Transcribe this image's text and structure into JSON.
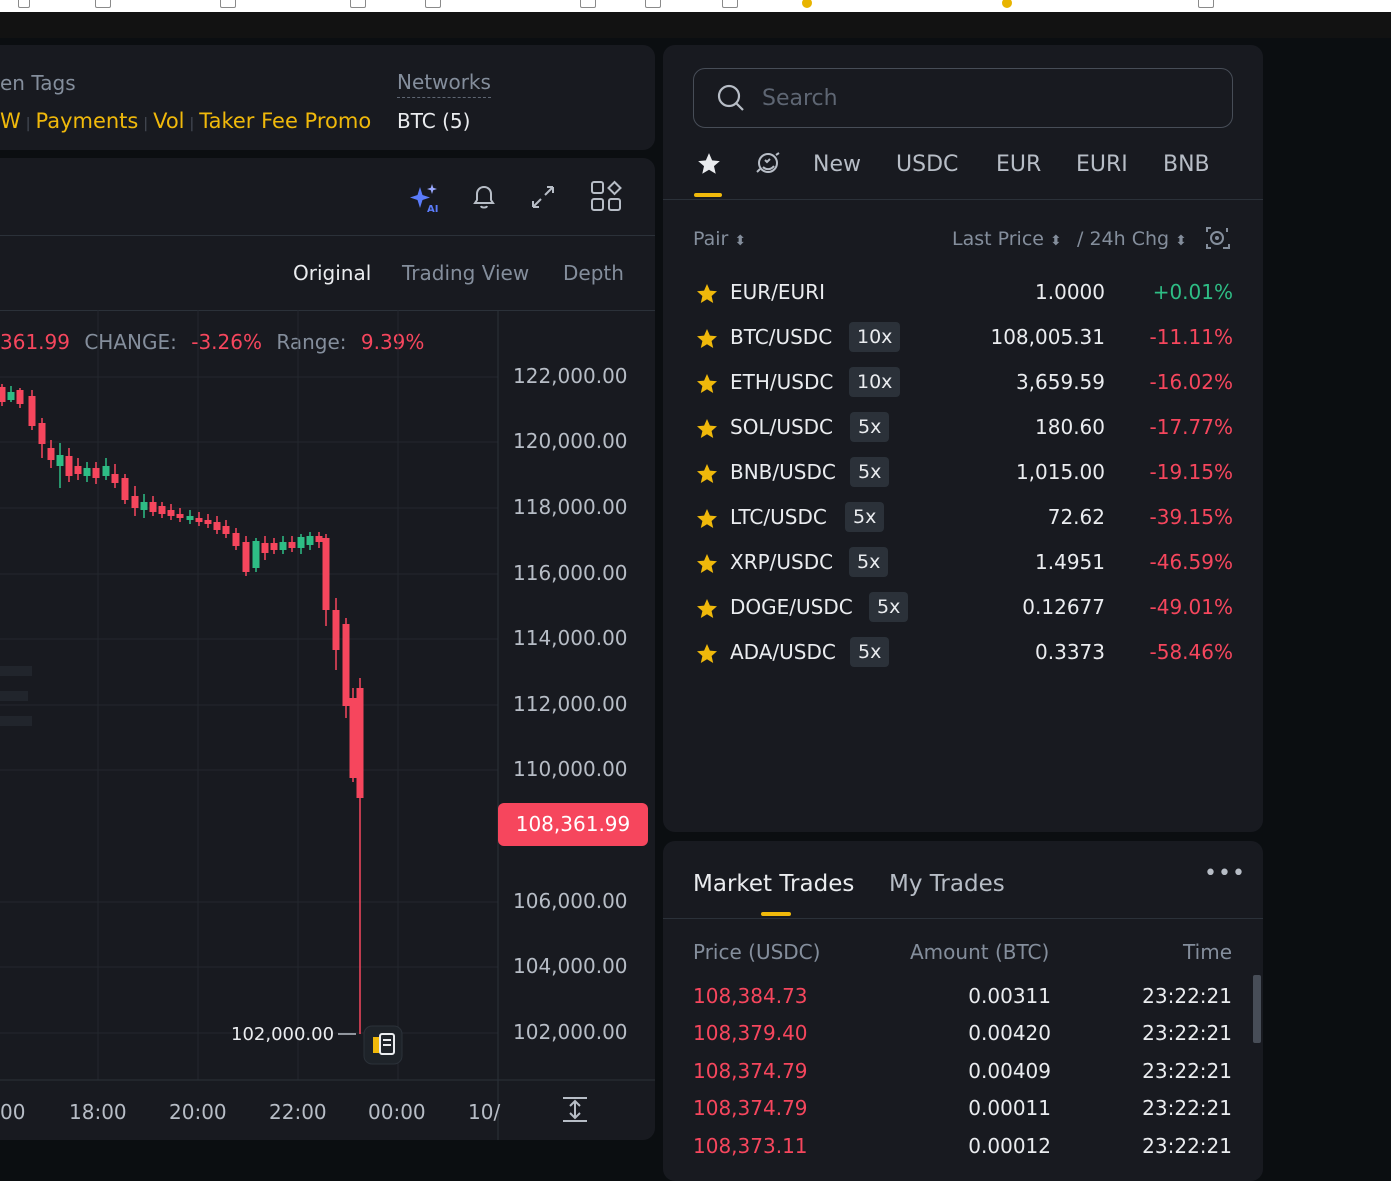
{
  "info": {
    "token_tags_label": "en Tags",
    "tags": [
      "W",
      "Payments",
      "Vol",
      "Taker Fee Promo"
    ],
    "networks_label": "Networks",
    "networks_value": "BTC (5)"
  },
  "chart": {
    "view_tabs": [
      "Original",
      "Trading View",
      "Depth"
    ],
    "active_view": "Original",
    "stats": {
      "close_value": "361.99",
      "change_label": "CHANGE:",
      "change_value": "-3.26%",
      "range_label": "Range:",
      "range_value": "9.39%"
    },
    "price_axis": [
      "122,000.00",
      "120,000.00",
      "118,000.00",
      "116,000.00",
      "114,000.00",
      "112,000.00",
      "110,000.00",
      "106,000.00",
      "104,000.00",
      "102,000.00"
    ],
    "time_axis": [
      "00",
      "18:00",
      "20:00",
      "22:00",
      "00:00",
      "10/"
    ],
    "current_price": "108,361.99",
    "low_marker": "102,000.00",
    "colors": {
      "up": "#2ebd85",
      "down": "#f6465d"
    }
  },
  "markets": {
    "search_placeholder": "Search",
    "tabs": [
      "New",
      "USDC",
      "EUR",
      "EURI",
      "BNB"
    ],
    "col_pair": "Pair",
    "col_last_price": "Last Price",
    "col_change": "/ 24h Chg",
    "rows": [
      {
        "pair": "EUR/EURI",
        "lev": "",
        "price": "1.0000",
        "chg": "+0.01%",
        "dir": "up"
      },
      {
        "pair": "BTC/USDC",
        "lev": "10x",
        "price": "108,005.31",
        "chg": "-11.11%",
        "dir": "down"
      },
      {
        "pair": "ETH/USDC",
        "lev": "10x",
        "price": "3,659.59",
        "chg": "-16.02%",
        "dir": "down"
      },
      {
        "pair": "SOL/USDC",
        "lev": "5x",
        "price": "180.60",
        "chg": "-17.77%",
        "dir": "down"
      },
      {
        "pair": "BNB/USDC",
        "lev": "5x",
        "price": "1,015.00",
        "chg": "-19.15%",
        "dir": "down"
      },
      {
        "pair": "LTC/USDC",
        "lev": "5x",
        "price": "72.62",
        "chg": "-39.15%",
        "dir": "down"
      },
      {
        "pair": "XRP/USDC",
        "lev": "5x",
        "price": "1.4951",
        "chg": "-46.59%",
        "dir": "down"
      },
      {
        "pair": "DOGE/USDC",
        "lev": "5x",
        "price": "0.12677",
        "chg": "-49.01%",
        "dir": "down"
      },
      {
        "pair": "ADA/USDC",
        "lev": "5x",
        "price": "0.3373",
        "chg": "-58.46%",
        "dir": "down"
      }
    ]
  },
  "trades": {
    "tabs": [
      "Market Trades",
      "My Trades"
    ],
    "col_price": "Price (USDC)",
    "col_amount": "Amount (BTC)",
    "col_time": "Time",
    "rows": [
      {
        "price": "108,384.73",
        "amount": "0.00311",
        "time": "23:22:21"
      },
      {
        "price": "108,379.40",
        "amount": "0.00420",
        "time": "23:22:21"
      },
      {
        "price": "108,374.79",
        "amount": "0.00409",
        "time": "23:22:21"
      },
      {
        "price": "108,374.79",
        "amount": "0.00011",
        "time": "23:22:21"
      },
      {
        "price": "108,373.11",
        "amount": "0.00012",
        "time": "23:22:21"
      }
    ]
  }
}
